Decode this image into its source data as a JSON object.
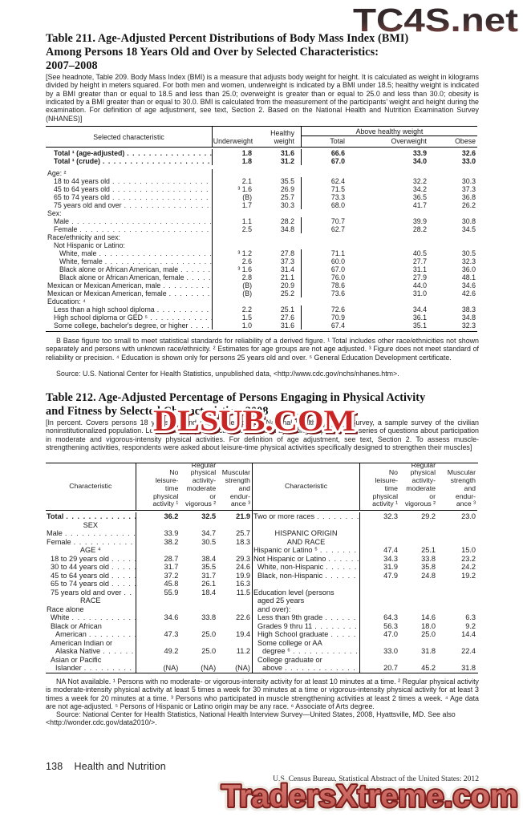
{
  "watermarks": {
    "top": "TC4S.net",
    "middle": "DLSUB.COM",
    "bottom": "TradersXtreme.com",
    "top_color_dark": "#2b2326",
    "top_color_red": "#8a4540",
    "red": "#c92525",
    "bottom_fill": "#cf6b62"
  },
  "table211": {
    "title_lines": [
      "Table 211. Age-Adjusted Percent Distributions of Body Mass Index (BMI)",
      "Among Persons 18 Years Old and Over by Selected Characteristics:",
      "2007–2008"
    ],
    "headnote": "[See headnote, Table 209. Body Mass Index (BMI) is a measure that adjusts body weight for height. It is calculated as weight in kilograms divided by height in meters squared. For both men and women, underweight is indicated by a BMI under 18.5; healthy weight is indicated by a BMI greater than or equal to 18.5 and less than 25.0; overweight is greater than or equal to 25.0 and less than 30.0; obesity is indicated by a BMI greater than or equal to 30.0. BMI is calculated from the measurement of the participants’ weight and height during the examination. For definition of age adjustment, see text, Section 2. Based on the National Health and Nutrition Examination Survey (NHANES)]",
    "header": {
      "characteristic": "Selected characteristic",
      "underweight": "Underweight",
      "healthy": "Healthy\nweight",
      "spanner": "Above healthy weight",
      "sub": [
        "Total",
        "Overweight",
        "Obese"
      ]
    },
    "rows": [
      {
        "l": "Total ¹ (age-adjusted)",
        "i": 1,
        "b": 1,
        "v": [
          "1.8",
          "31.6",
          "66.6",
          "33.9",
          "32.6"
        ]
      },
      {
        "l": "Total ¹ (crude)",
        "i": 1,
        "b": 1,
        "v": [
          "1.8",
          "31.2",
          "67.0",
          "34.0",
          "33.0"
        ]
      },
      {
        "l": "Age: ²",
        "i": 0,
        "gap": 1
      },
      {
        "l": "18 to 44 years old",
        "i": 1,
        "v": [
          "2.1",
          "35.5",
          "62.4",
          "32.2",
          "30.3"
        ]
      },
      {
        "l": "45 to 64 years old",
        "i": 1,
        "v": [
          "³ 1.6",
          "26.9",
          "71.5",
          "34.2",
          "37.3"
        ]
      },
      {
        "l": "65 to 74 years old",
        "i": 1,
        "v": [
          "(B)",
          "25.7",
          "73.3",
          "36.5",
          "36.8"
        ]
      },
      {
        "l": "75 years old and over",
        "i": 1,
        "v": [
          "1.7",
          "30.3",
          "68.0",
          "41.7",
          "26.2"
        ]
      },
      {
        "l": "Sex:",
        "i": 0
      },
      {
        "l": "Male",
        "i": 1,
        "v": [
          "1.1",
          "28.2",
          "70.7",
          "39.9",
          "30.8"
        ]
      },
      {
        "l": "Female",
        "i": 1,
        "v": [
          "2.5",
          "34.8",
          "62.7",
          "28.2",
          "34.5"
        ]
      },
      {
        "l": "Race/ethnicity and sex:",
        "i": 0
      },
      {
        "l": "Not Hispanic or Latino:",
        "i": 1
      },
      {
        "l": "White, male",
        "i": 2,
        "v": [
          "³ 1.2",
          "27.8",
          "71.1",
          "40.5",
          "30.5"
        ]
      },
      {
        "l": "White, female",
        "i": 2,
        "v": [
          "2.6",
          "37.3",
          "60.0",
          "27.7",
          "32.3"
        ]
      },
      {
        "l": "Black alone or African American, male",
        "i": 2,
        "v": [
          "³ 1.6",
          "31.4",
          "67.0",
          "31.1",
          "36.0"
        ]
      },
      {
        "l": "Black alone or African American, female",
        "i": 2,
        "v": [
          "2.8",
          "21.1",
          "76.0",
          "27.9",
          "48.1"
        ]
      },
      {
        "l": "Mexican or Mexican American, male",
        "i": 0,
        "v": [
          "(B)",
          "20.9",
          "78.6",
          "44.0",
          "34.6"
        ]
      },
      {
        "l": "Mexican or Mexican American, female",
        "i": 0,
        "v": [
          "(B)",
          "25.2",
          "73.6",
          "31.0",
          "42.6"
        ]
      },
      {
        "l": "Education: ⁴",
        "i": 0
      },
      {
        "l": "Less than a high school diploma",
        "i": 1,
        "v": [
          "2.2",
          "25.1",
          "72.6",
          "34.4",
          "38.3"
        ]
      },
      {
        "l": "High school diploma or GED ⁵",
        "i": 1,
        "v": [
          "1.5",
          "27.6",
          "70.9",
          "36.1",
          "34.8"
        ]
      },
      {
        "l": "Some college, bachelor's degree, or higher",
        "i": 1,
        "v": [
          "1.0",
          "31.6",
          "67.4",
          "35.1",
          "32.3"
        ]
      }
    ],
    "footnote": "B Base figure too small to meet statistical standards for reliability of a derived figure. ¹ Total includes other race/ethnicities not shown separately and persons with unknown race/ethnicity. ² Estimates for age groups are not age adjusted. ³ Figure does not meet standard of reliability or precision. ⁴ Education is shown only for persons 25 years old and over. ⁵ General Education Development certificate.",
    "source": "Source: U.S. National Center for Health Statistics, unpublished data, <http://www.cdc.gov/nchs/nhanes.htm>."
  },
  "table212": {
    "title_lines": [
      "Table 212. Age-Adjusted Percentage of Persons Engaging in Physical Activity",
      "and Fitness by Selected Characteristics: 2008"
    ],
    "headnote": "[In percent. Covers persons 18 years old and over. Based on the National Health Interview Survey, a sample survey of the civilian noninstitutionalized population. Leisure-time physical activity is assessed by asking respondents a series of questions about participation in moderate and vigorous-intensity physical activities. For definition of age adjustment, see text, Section 2. To assess muscle-strengthening activities, respondents were asked about leisure-time physical activities specifically designed to strengthen their muscles]",
    "header": {
      "characteristic": "Characteristic",
      "cols": [
        [
          "No",
          "leisure-",
          "time",
          "physical",
          "activity ¹"
        ],
        [
          "Regular",
          "physical",
          "activity-",
          "moderate",
          "or",
          "vigorous ²"
        ],
        [
          "Muscular",
          "strength",
          "and",
          "endur-",
          "ance ³"
        ]
      ]
    },
    "left_rows": [
      {
        "l": "Total",
        "b": 1,
        "v": [
          "36.2",
          "32.5",
          "21.9"
        ]
      },
      {
        "c": "SEX"
      },
      {
        "l": "Male",
        "v": [
          "33.9",
          "34.7",
          "25.7"
        ]
      },
      {
        "l": "Female",
        "v": [
          "38.2",
          "30.5",
          "18.3"
        ]
      },
      {
        "c": "AGE ⁴"
      },
      {
        "l": "18 to 29 years old",
        "i": 1,
        "v": [
          "28.7",
          "38.4",
          "29.3"
        ]
      },
      {
        "l": "30 to 44 years old",
        "i": 1,
        "v": [
          "31.7",
          "35.5",
          "24.6"
        ]
      },
      {
        "l": "45 to 64 years old",
        "i": 1,
        "v": [
          "37.2",
          "31.7",
          "19.9"
        ]
      },
      {
        "l": "65 to 74 years old",
        "i": 1,
        "v": [
          "45.8",
          "26.1",
          "16.3"
        ]
      },
      {
        "l": "75 years old and over",
        "i": 1,
        "v": [
          "55.9",
          "18.4",
          "11.5"
        ]
      },
      {
        "c": "RACE"
      },
      {
        "l": "Race alone",
        "p": 1
      },
      {
        "l": "White",
        "i": 1,
        "v": [
          "34.6",
          "33.8",
          "22.6"
        ]
      },
      {
        "l": "Black or African",
        "i": 1,
        "p": 1
      },
      {
        "l": "American",
        "i": 2,
        "v": [
          "47.3",
          "25.0",
          "19.4"
        ]
      },
      {
        "l": "American Indian or",
        "i": 1,
        "p": 1
      },
      {
        "l": "Alaska Native",
        "i": 2,
        "v": [
          "49.2",
          "25.0",
          "11.2"
        ]
      },
      {
        "l": "Asian or Pacific",
        "i": 1,
        "p": 1
      },
      {
        "l": "Islander",
        "i": 2,
        "v": [
          "(NA)",
          "(NA)",
          "(NA)"
        ]
      }
    ],
    "right_rows": [
      {
        "l": "Two or more races",
        "v": [
          "32.3",
          "29.2",
          "23.0"
        ]
      },
      {
        "s": 1
      },
      {
        "c": "HISPANIC ORIGIN"
      },
      {
        "c": "AND RACE"
      },
      {
        "l": "Hispanic or Latino ⁵",
        "v": [
          "47.4",
          "25.1",
          "15.0"
        ]
      },
      {
        "l": "Not Hispanic or Latino",
        "v": [
          "34.3",
          "33.8",
          "23.2"
        ]
      },
      {
        "l": "White, non-Hispanic",
        "i": 1,
        "v": [
          "31.9",
          "35.8",
          "24.2"
        ]
      },
      {
        "l": "Black, non-Hispanic",
        "i": 1,
        "v": [
          "47.9",
          "24.8",
          "19.2"
        ]
      },
      {
        "s": 1
      },
      {
        "l": "Education level (persons",
        "p": 1
      },
      {
        "l": "aged 25 years",
        "i": 1,
        "p": 1
      },
      {
        "l": "and over):",
        "i": 1,
        "p": 1
      },
      {
        "l": "Less than 9th grade",
        "i": 1,
        "v": [
          "64.3",
          "14.6",
          "6.3"
        ]
      },
      {
        "l": "Grades 9 thru 11",
        "i": 1,
        "v": [
          "56.3",
          "18.0",
          "9.2"
        ]
      },
      {
        "l": "High School graduate",
        "i": 1,
        "v": [
          "47.0",
          "25.0",
          "14.4"
        ]
      },
      {
        "l": "Some college or AA",
        "i": 1,
        "p": 1
      },
      {
        "l": "degree ⁶",
        "i": 2,
        "v": [
          "33.0",
          "31.8",
          "22.4"
        ]
      },
      {
        "l": "College graduate or",
        "i": 1,
        "p": 1
      },
      {
        "l": "above",
        "i": 2,
        "v": [
          "20.7",
          "45.2",
          "31.8"
        ]
      }
    ],
    "footnote": "NA Not available. ¹ Persons with no moderate- or vigorous-intensity activity for at least 10 minutes at a time. ² Regular physical activity is moderate-intensity physical activity at least 5 times a week for 30 minutes at a time or vigorous-intensity physical activity for at least 3 times a week for 20 minutes at a time. ³ Persons who participated in muscle strengthening activities at least 2 times a week. ⁴ Age data are not age-adjusted. ⁵ Persons of Hispanic or Latino origin may be any race. ⁶ Associate of Arts degree.",
    "source": "Source: National Center for Health Statistics, National Health Interview Survey—United States, 2008, Hyattsville, MD. See also <http://wonder.cdc.gov/data2010/>."
  },
  "footer": {
    "page_number": "138",
    "section": "Health and Nutrition",
    "source": "U.S. Census Bureau, Statistical Abstract of the United States: 2012"
  }
}
